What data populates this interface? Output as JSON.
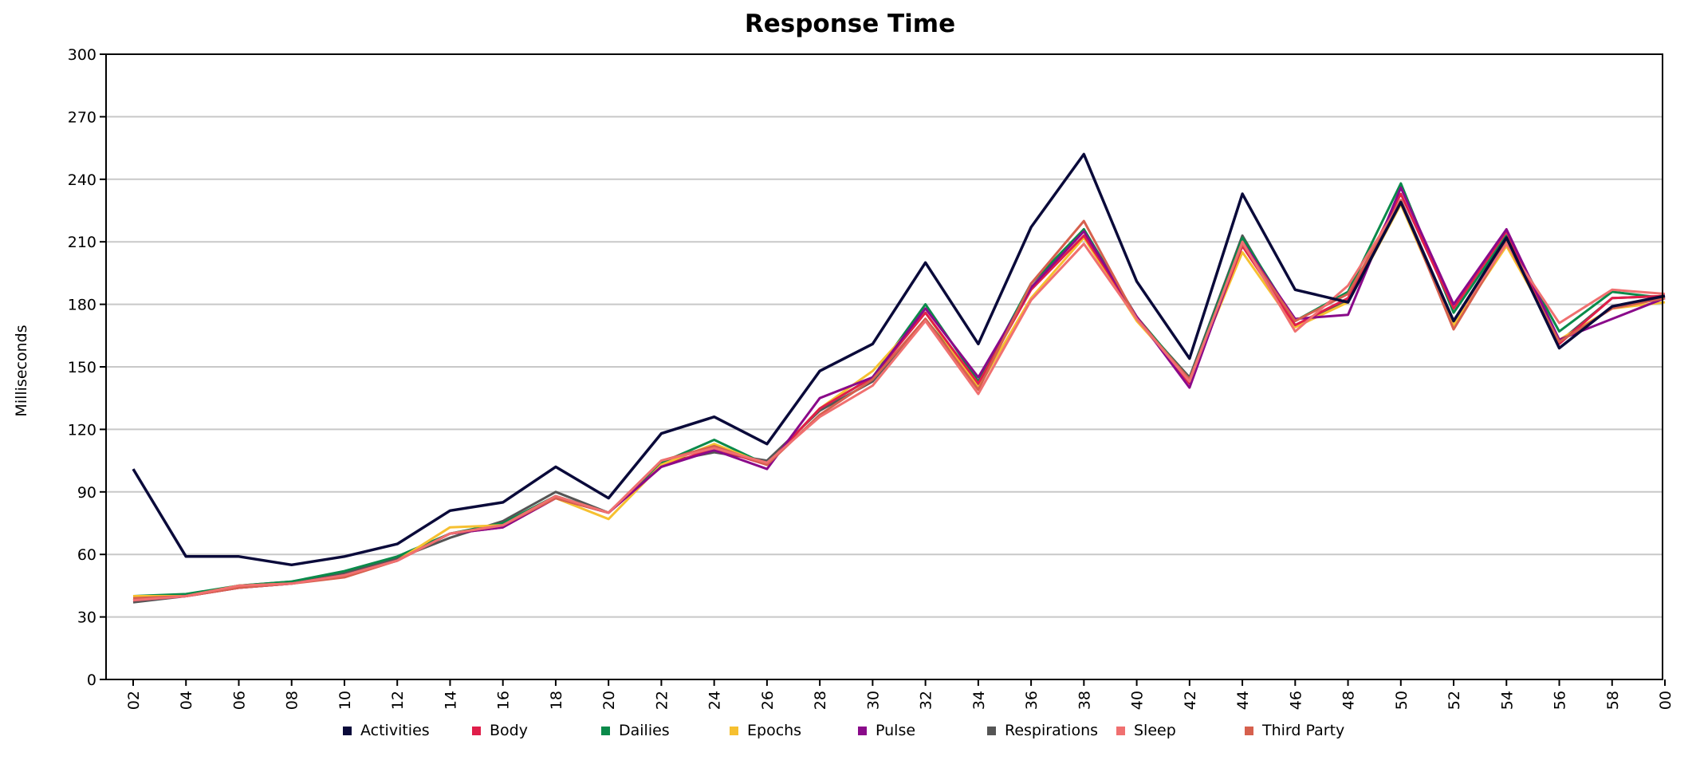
{
  "chart_data": {
    "type": "line",
    "title": "Response Time",
    "xlabel": "",
    "ylabel": "Milliseconds",
    "ylim": [
      0,
      300
    ],
    "yticks": [
      0,
      30,
      60,
      90,
      120,
      150,
      180,
      210,
      240,
      270,
      300
    ],
    "grid": true,
    "legend_position": "bottom",
    "categories": [
      "02",
      "04",
      "06",
      "08",
      "10",
      "12",
      "14",
      "16",
      "18",
      "20",
      "22",
      "24",
      "26",
      "28",
      "30",
      "32",
      "34",
      "36",
      "38",
      "40",
      "42",
      "44",
      "46",
      "48",
      "50",
      "52",
      "54",
      "56",
      "58",
      "00"
    ],
    "series": [
      {
        "name": "Respirations",
        "color": "#555555",
        "values": [
          37,
          40,
          45,
          47,
          51,
          58,
          68,
          76,
          90,
          80,
          104,
          109,
          105,
          129,
          143,
          173,
          141,
          188,
          216,
          173,
          145,
          213,
          170,
          182,
          230,
          172,
          212,
          162,
          183,
          184
        ]
      },
      {
        "name": "Dailies",
        "color": "#0a8a4a",
        "values": [
          40,
          41,
          45,
          47,
          52,
          59,
          70,
          75,
          88,
          80,
          104,
          115,
          103,
          130,
          145,
          180,
          143,
          190,
          216,
          174,
          144,
          212,
          172,
          186,
          238,
          176,
          213,
          167,
          186,
          183
        ]
      },
      {
        "name": "Epochs",
        "color": "#f6c030",
        "values": [
          40,
          40,
          45,
          46,
          50,
          57,
          73,
          74,
          87,
          77,
          103,
          113,
          103,
          130,
          148,
          176,
          140,
          183,
          212,
          172,
          144,
          205,
          169,
          181,
          228,
          170,
          208,
          163,
          178,
          181
        ]
      },
      {
        "name": "Body",
        "color": "#e01e4a",
        "values": [
          38,
          40,
          44,
          46,
          50,
          57,
          70,
          73,
          87,
          80,
          102,
          111,
          103,
          130,
          145,
          176,
          142,
          187,
          213,
          174,
          142,
          208,
          170,
          183,
          233,
          178,
          215,
          161,
          183,
          184
        ]
      },
      {
        "name": "Pulse",
        "color": "#8a0a8a",
        "values": [
          38,
          40,
          44,
          46,
          50,
          57,
          70,
          73,
          87,
          80,
          102,
          110,
          101,
          135,
          145,
          178,
          145,
          188,
          215,
          174,
          140,
          210,
          173,
          175,
          236,
          180,
          216,
          163,
          173,
          183
        ]
      },
      {
        "name": "Third Party",
        "color": "#d6604d",
        "values": [
          39,
          40,
          44,
          46,
          49,
          57,
          70,
          74,
          87,
          80,
          105,
          112,
          103,
          127,
          144,
          173,
          139,
          190,
          220,
          173,
          144,
          209,
          172,
          185,
          230,
          168,
          210,
          162,
          178,
          183
        ]
      },
      {
        "name": "Sleep",
        "color": "#f07070",
        "values": [
          38,
          40,
          45,
          46,
          50,
          57,
          70,
          74,
          88,
          80,
          105,
          111,
          104,
          126,
          141,
          172,
          137,
          182,
          209,
          173,
          143,
          210,
          167,
          189,
          229,
          172,
          209,
          171,
          187,
          185
        ]
      },
      {
        "name": "Activities",
        "color": "#0a0a3a",
        "values": [
          101,
          59,
          59,
          55,
          59,
          65,
          81,
          85,
          102,
          87,
          118,
          126,
          113,
          148,
          161,
          200,
          161,
          217,
          252,
          191,
          154,
          233,
          187,
          181,
          229,
          172,
          212,
          159,
          179,
          184
        ]
      }
    ],
    "legend": [
      {
        "name": "Activities",
        "color": "#0a0a3a"
      },
      {
        "name": "Body",
        "color": "#e01e4a"
      },
      {
        "name": "Dailies",
        "color": "#0a8a4a"
      },
      {
        "name": "Epochs",
        "color": "#f6c030"
      },
      {
        "name": "Pulse",
        "color": "#8a0a8a"
      },
      {
        "name": "Respirations",
        "color": "#555555"
      },
      {
        "name": "Sleep",
        "color": "#f07070"
      },
      {
        "name": "Third Party",
        "color": "#d6604d"
      }
    ]
  }
}
